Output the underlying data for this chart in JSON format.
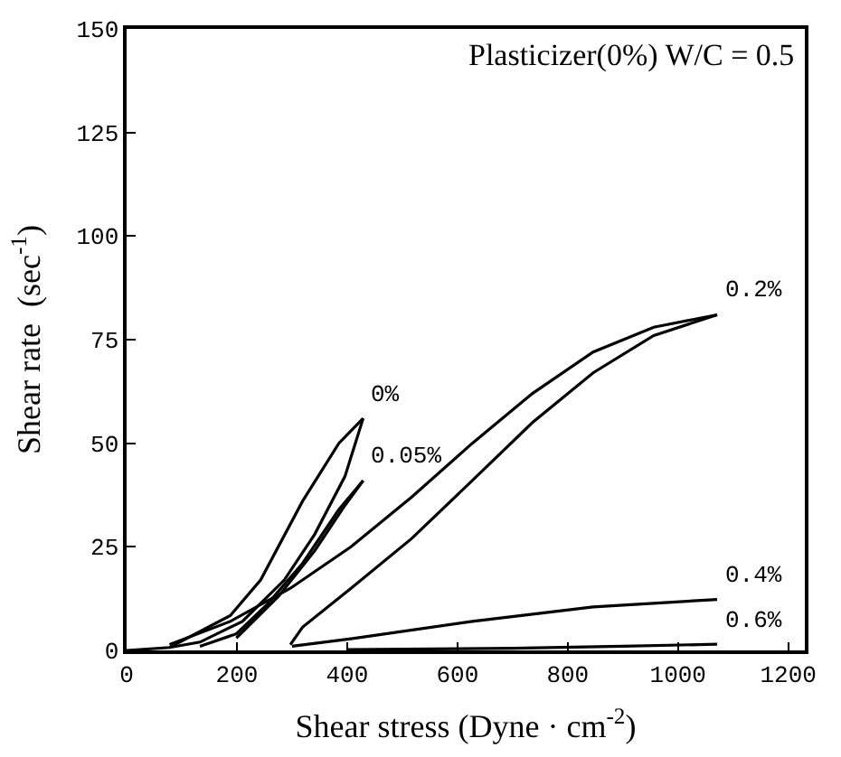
{
  "chart_data": {
    "type": "line",
    "xlabel": "Shear stress (Dyne · cm$^{-2}$)",
    "ylabel": "Shear rate  (sec$^{-1}$)",
    "xlim": [
      0,
      1230
    ],
    "ylim": [
      0,
      150
    ],
    "xticks": [
      0,
      200,
      400,
      600,
      800,
      1000,
      1200
    ],
    "yticks": [
      0,
      25,
      50,
      75,
      100,
      125,
      150
    ],
    "legend": false,
    "marker": "none",
    "line_style": "solid",
    "series": [
      {
        "name": "0%",
        "color": "#000000",
        "x": [
          0,
          78,
          188,
          243,
          319,
          385,
          429
        ],
        "values": [
          0,
          0.7,
          8.4,
          17,
          36,
          50,
          56
        ]
      },
      {
        "color": "#000000",
        "x": [
          78,
          133,
          210,
          286,
          341,
          396,
          429
        ],
        "values": [
          0.7,
          2,
          7,
          17,
          28,
          42,
          56
        ]
      },
      {
        "name": "0.05%",
        "color": "#000000",
        "x": [
          133,
          199,
          254,
          319,
          385,
          429
        ],
        "values": [
          1,
          4,
          11,
          21,
          34,
          41
        ]
      },
      {
        "color": "#000000",
        "x": [
          199,
          275,
          341,
          396,
          429
        ],
        "values": [
          3,
          13,
          24,
          35,
          41
        ]
      },
      {
        "name": "0.2%",
        "color": "#000000",
        "x": [
          78,
          188,
          297,
          407,
          517,
          627,
          736,
          846,
          956,
          1071
        ],
        "values": [
          1.4,
          7,
          15,
          25,
          37,
          50,
          62,
          72,
          78,
          81
        ]
      },
      {
        "color": "#000000",
        "x": [
          297,
          319,
          407,
          517,
          627,
          736,
          846,
          956,
          1071
        ],
        "values": [
          1.4,
          5.6,
          15,
          27,
          41,
          55,
          67,
          76,
          81
        ]
      },
      {
        "name": "0.4%",
        "color": "#000000",
        "x": [
          300,
          407,
          627,
          846,
          1071
        ],
        "values": [
          1,
          2.8,
          7,
          10.5,
          12.3
        ]
      },
      {
        "name": "0.6%",
        "color": "#000000",
        "x": [
          400,
          700,
          900,
          1071
        ],
        "values": [
          0.2,
          0.5,
          1,
          1.5
        ]
      }
    ],
    "annotations": [
      "Plasticizer(0%) W/C = 0.5"
    ]
  }
}
